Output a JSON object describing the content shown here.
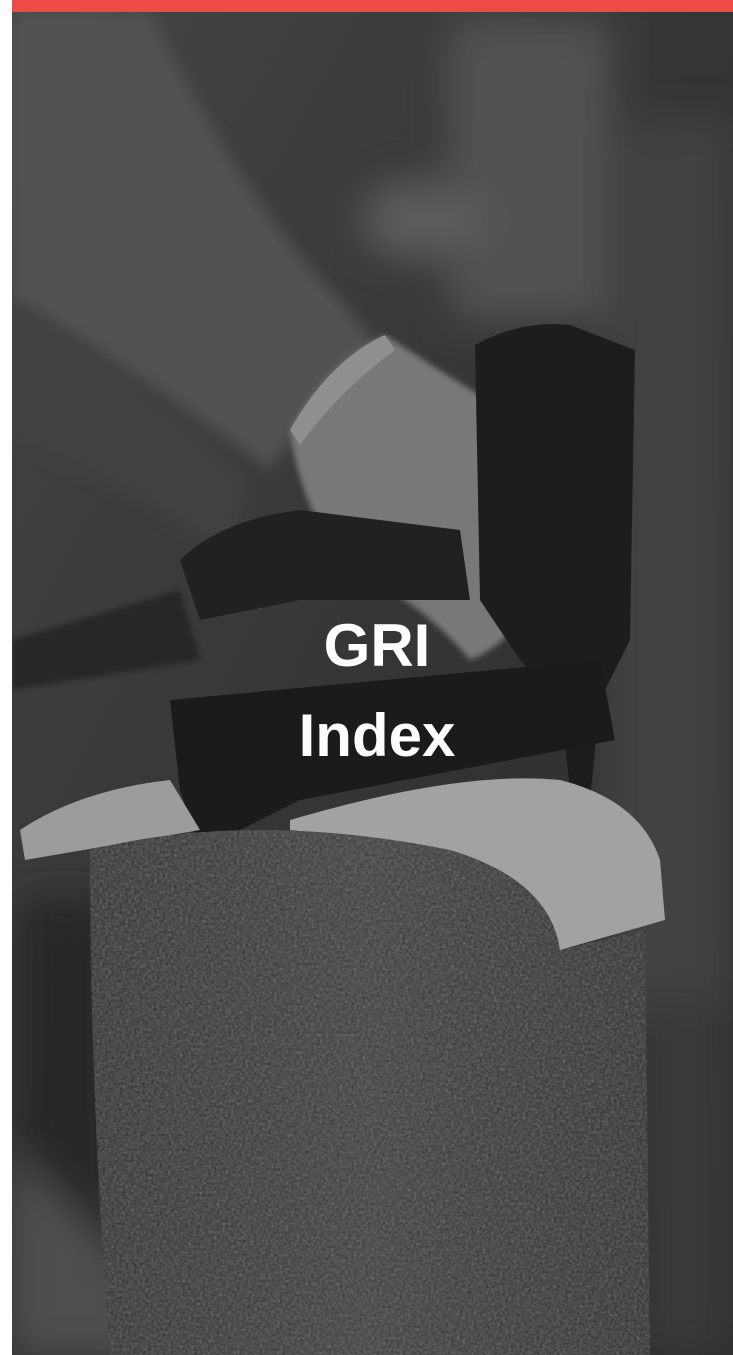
{
  "title": {
    "lines": [
      "GRI",
      "Index"
    ]
  }
}
